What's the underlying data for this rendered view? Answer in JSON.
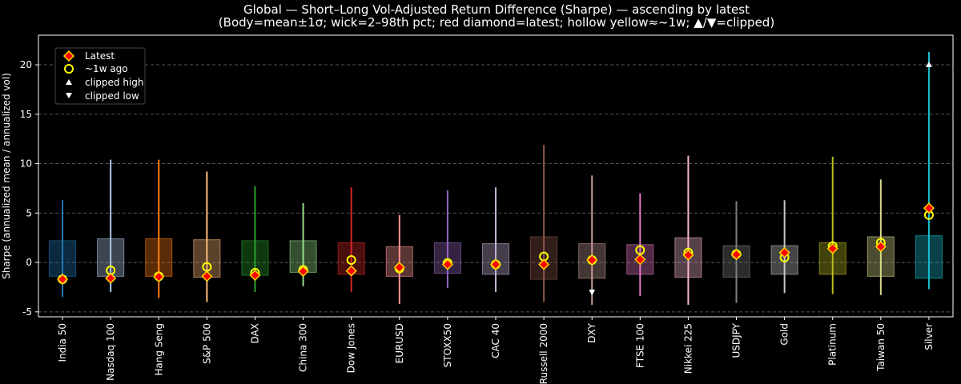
{
  "chart_data": {
    "type": "box",
    "title": "Global — Short–Long Vol-Adjusted Return Difference (Sharpe) — ascending by latest",
    "subtitle": "(Body=mean±1σ; wick=2–98th pct; red diamond=latest; hollow yellow≈~1w; ▲/▼=clipped)",
    "ylabel": "Sharpe (annualized mean / annualized vol)",
    "ylim": [
      -5.5,
      23
    ],
    "yticks": [
      -5,
      0,
      5,
      10,
      15,
      20
    ],
    "grid": true,
    "legend_position": "top-left",
    "legend": {
      "latest": "Latest",
      "week_ago": "~1w ago",
      "clipped_high": "clipped high",
      "clipped_low": "clipped low"
    },
    "categories": [
      "India 50",
      "Nasdaq 100",
      "Hang Seng",
      "S&P 500",
      "DAX",
      "China 300",
      "Dow Jones",
      "EURUSD",
      "STOXX50",
      "CAC 40",
      "Russell 2000",
      "DXY",
      "FTSE 100",
      "Nikkei 225",
      "USDJPY",
      "Gold",
      "Platinum",
      "Taiwan 50",
      "Silver"
    ],
    "colors": [
      "#1f77b4",
      "#aec7e8",
      "#ff7f0e",
      "#ffbb78",
      "#2ca02c",
      "#98df8a",
      "#d62728",
      "#ff9896",
      "#9467bd",
      "#c5b0d5",
      "#8c564b",
      "#c49c94",
      "#e377c2",
      "#f7b6d2",
      "#7f7f7f",
      "#c7c7c7",
      "#bcbd22",
      "#dbdb8d",
      "#17becf"
    ],
    "body_low": [
      -1.4,
      -1.4,
      -1.4,
      -1.5,
      -1.3,
      -1.0,
      -1.2,
      -1.4,
      -1.1,
      -1.2,
      -1.7,
      -1.6,
      -1.2,
      -1.5,
      -1.5,
      -1.2,
      -1.2,
      -1.4,
      -1.6
    ],
    "body_high": [
      2.2,
      2.4,
      2.4,
      2.3,
      2.2,
      2.2,
      2.0,
      1.6,
      2.0,
      1.9,
      2.6,
      1.9,
      1.8,
      2.5,
      1.7,
      1.7,
      2.0,
      2.6,
      2.7
    ],
    "wick_low": [
      -3.5,
      -3.0,
      -3.6,
      -4.0,
      -3.0,
      -2.4,
      -3.0,
      -4.2,
      -2.6,
      -3.0,
      -4.0,
      -4.3,
      -3.4,
      -4.3,
      -4.1,
      -3.1,
      -3.2,
      -3.3,
      -2.7
    ],
    "wick_high": [
      6.3,
      10.4,
      10.4,
      9.2,
      7.7,
      6.0,
      7.6,
      4.8,
      7.3,
      7.6,
      11.9,
      8.8,
      7.0,
      10.8,
      6.2,
      6.3,
      10.7,
      8.4,
      21.3
    ],
    "latest": [
      -1.7,
      -1.6,
      -1.45,
      -1.4,
      -1.3,
      -0.9,
      -0.85,
      -0.5,
      -0.2,
      -0.2,
      -0.2,
      0.25,
      0.3,
      0.75,
      0.8,
      1.0,
      1.4,
      1.6,
      5.5
    ],
    "week_ago": [
      -1.7,
      -0.8,
      -1.4,
      -0.45,
      -1.05,
      -0.75,
      0.25,
      -0.6,
      -0.05,
      -0.2,
      0.6,
      0.25,
      1.25,
      1.0,
      0.85,
      0.5,
      1.65,
      2.0,
      4.8
    ],
    "clipped_high": [
      null,
      null,
      null,
      null,
      null,
      null,
      null,
      null,
      null,
      null,
      null,
      null,
      null,
      null,
      null,
      null,
      null,
      null,
      20
    ],
    "clipped_low": [
      null,
      null,
      null,
      null,
      null,
      null,
      null,
      null,
      null,
      null,
      null,
      -3,
      null,
      null,
      null,
      null,
      null,
      null,
      null
    ]
  }
}
